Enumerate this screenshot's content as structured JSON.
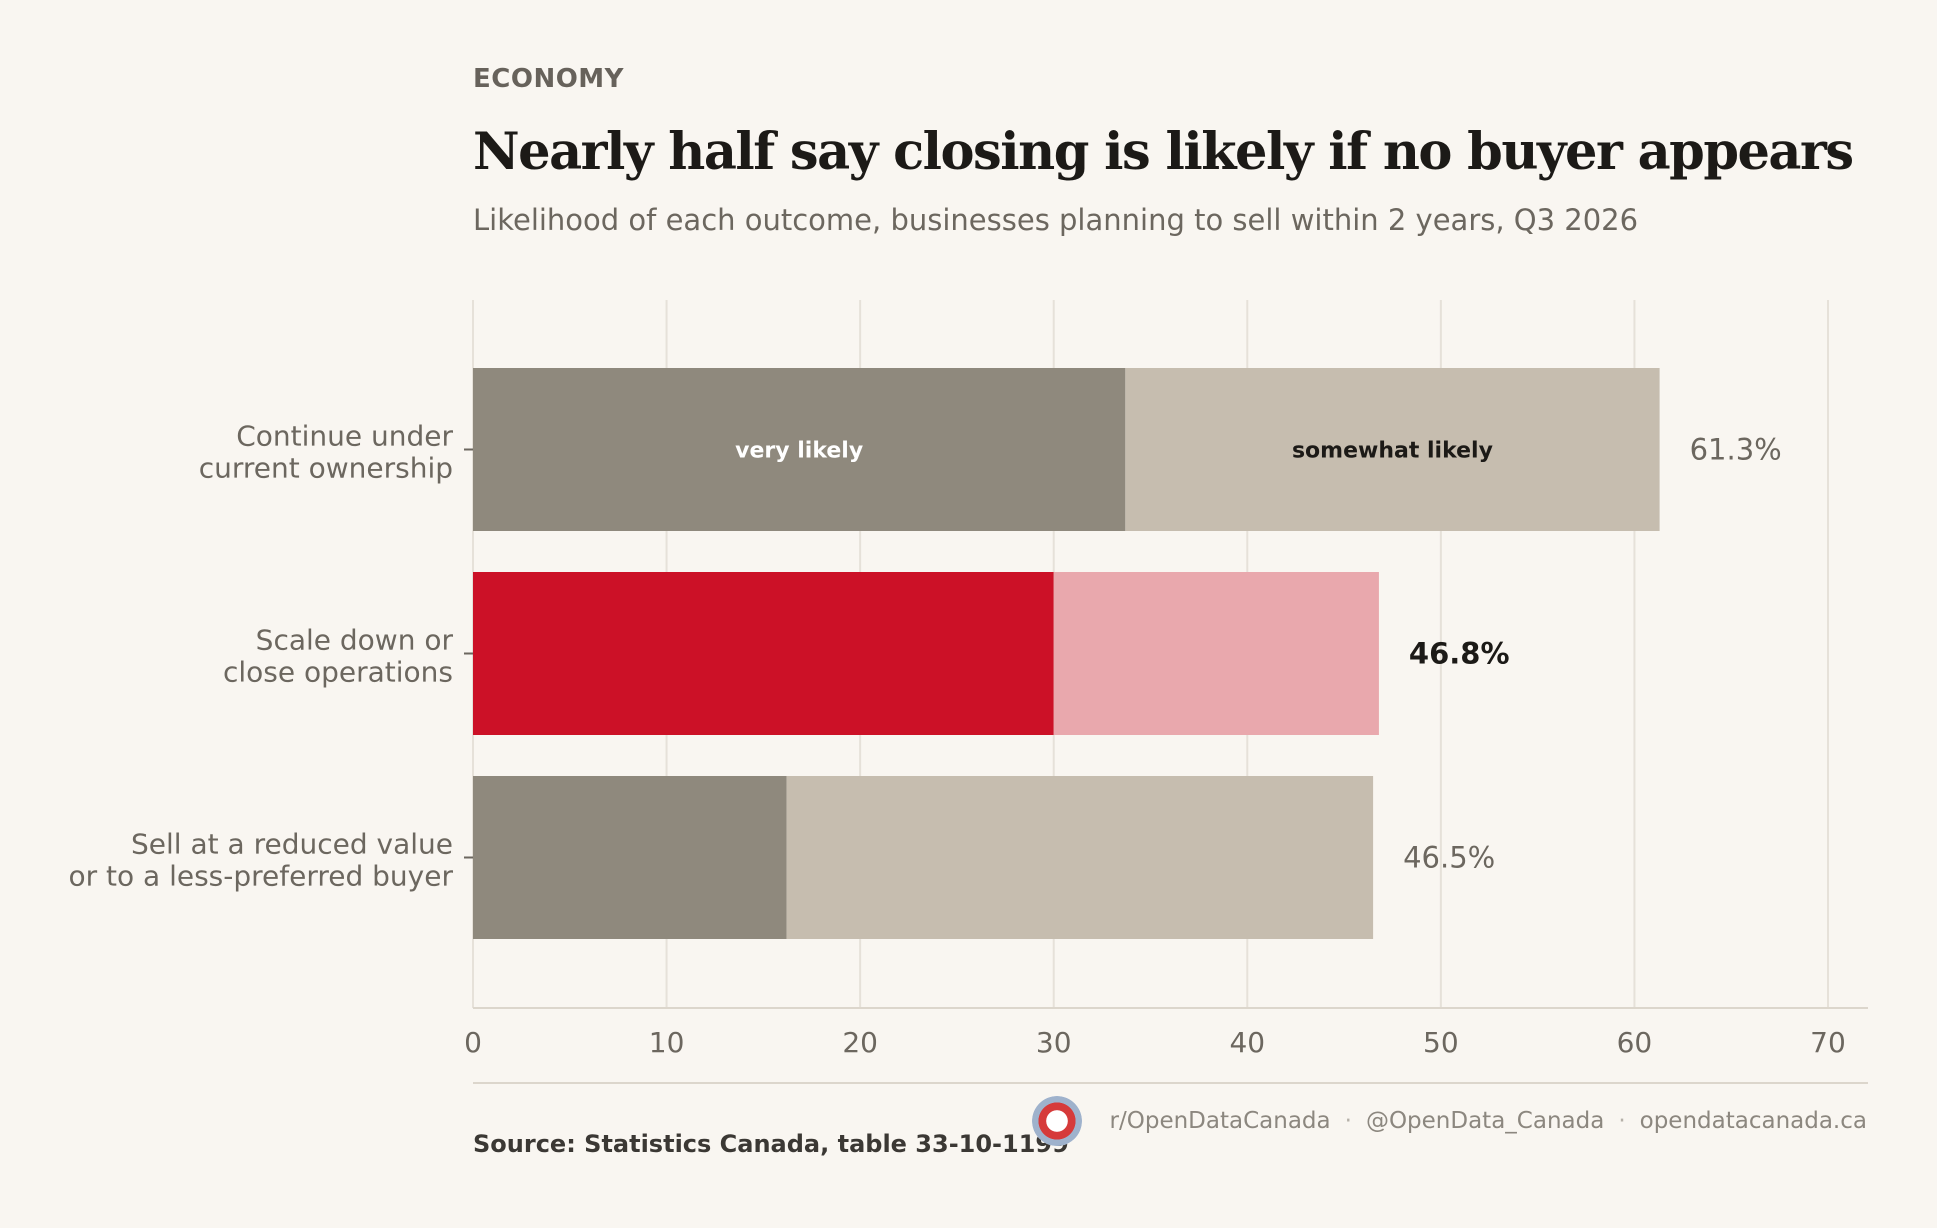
{
  "header": {
    "kicker": "ECONOMY",
    "title": "Nearly half say closing is likely if no buyer appears",
    "subtitle": "Likelihood of each outcome, businesses planning to sell within 2 years, Q3 2026"
  },
  "chart_data": {
    "type": "bar",
    "orientation": "horizontal",
    "stacked": true,
    "categories": [
      [
        "Continue under",
        "current ownership"
      ],
      [
        "Scale down or",
        "close operations"
      ],
      [
        "Sell at a reduced value",
        "or to a less-preferred buyer"
      ]
    ],
    "series": [
      {
        "name": "very likely",
        "values": [
          33.7,
          30.0,
          16.2
        ]
      },
      {
        "name": "somewhat likely",
        "values": [
          27.6,
          16.8,
          30.3
        ]
      }
    ],
    "totals": [
      61.3,
      46.8,
      46.5
    ],
    "total_labels": [
      "61.3%",
      "46.8%",
      "46.5%"
    ],
    "highlight_index": 1,
    "xlim": [
      0,
      70
    ],
    "xticks": [
      0,
      10,
      20,
      30,
      40,
      50,
      60,
      70
    ],
    "grid": true,
    "legend": "inline labels on first bar",
    "colors": {
      "very_likely": "#8f897d",
      "somewhat_likely": "#c6bdaf",
      "highlight_very_likely": "#cc1127",
      "highlight_somewhat_likely": "#e9a8ad",
      "grid": "#e6e1d9",
      "axis_text": "#6c675f"
    }
  },
  "footer": {
    "source": "Source: Statistics Canada, table 33-10-1199",
    "reddit": "r/OpenDataCanada",
    "twitter": "@OpenData_Canada",
    "website": "opendatacanada.ca",
    "separator": "·",
    "logo_icon": "maple-leaf-logo-icon"
  }
}
